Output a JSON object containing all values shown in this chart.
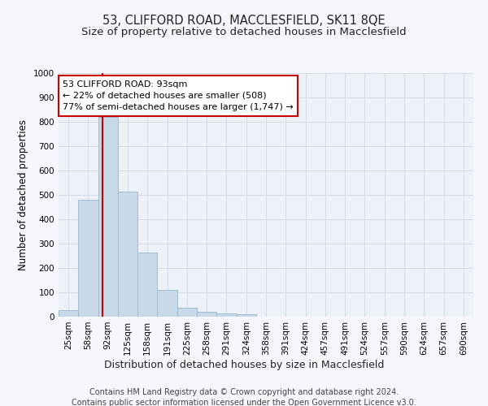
{
  "title": "53, CLIFFORD ROAD, MACCLESFIELD, SK11 8QE",
  "subtitle": "Size of property relative to detached houses in Macclesfield",
  "xlabel": "Distribution of detached houses by size in Macclesfield",
  "ylabel": "Number of detached properties",
  "bar_labels": [
    "25sqm",
    "58sqm",
    "92sqm",
    "125sqm",
    "158sqm",
    "191sqm",
    "225sqm",
    "258sqm",
    "291sqm",
    "324sqm",
    "358sqm",
    "391sqm",
    "424sqm",
    "457sqm",
    "491sqm",
    "524sqm",
    "557sqm",
    "590sqm",
    "624sqm",
    "657sqm",
    "690sqm"
  ],
  "bar_values": [
    28,
    480,
    820,
    515,
    265,
    110,
    38,
    20,
    15,
    10,
    0,
    0,
    0,
    0,
    0,
    0,
    0,
    0,
    0,
    0,
    0
  ],
  "bar_color": "#c8daea",
  "bar_edge_color": "#a0bcd0",
  "vline_color": "#cc0000",
  "annotation_line1": "53 CLIFFORD ROAD: 93sqm",
  "annotation_line2": "← 22% of detached houses are smaller (508)",
  "annotation_line3": "77% of semi-detached houses are larger (1,747) →",
  "annotation_box_color": "#ffffff",
  "annotation_box_edge": "#cc0000",
  "ylim": [
    0,
    1000
  ],
  "yticks": [
    0,
    100,
    200,
    300,
    400,
    500,
    600,
    700,
    800,
    900,
    1000
  ],
  "grid_color": "#d0d8e8",
  "background_color": "#edf2f8",
  "fig_background": "#f5f7fc",
  "footer_line1": "Contains HM Land Registry data © Crown copyright and database right 2024.",
  "footer_line2": "Contains public sector information licensed under the Open Government Licence v3.0.",
  "title_fontsize": 10.5,
  "subtitle_fontsize": 9.5,
  "xlabel_fontsize": 9,
  "ylabel_fontsize": 8.5,
  "tick_fontsize": 7.5,
  "annotation_fontsize": 8,
  "footer_fontsize": 7
}
